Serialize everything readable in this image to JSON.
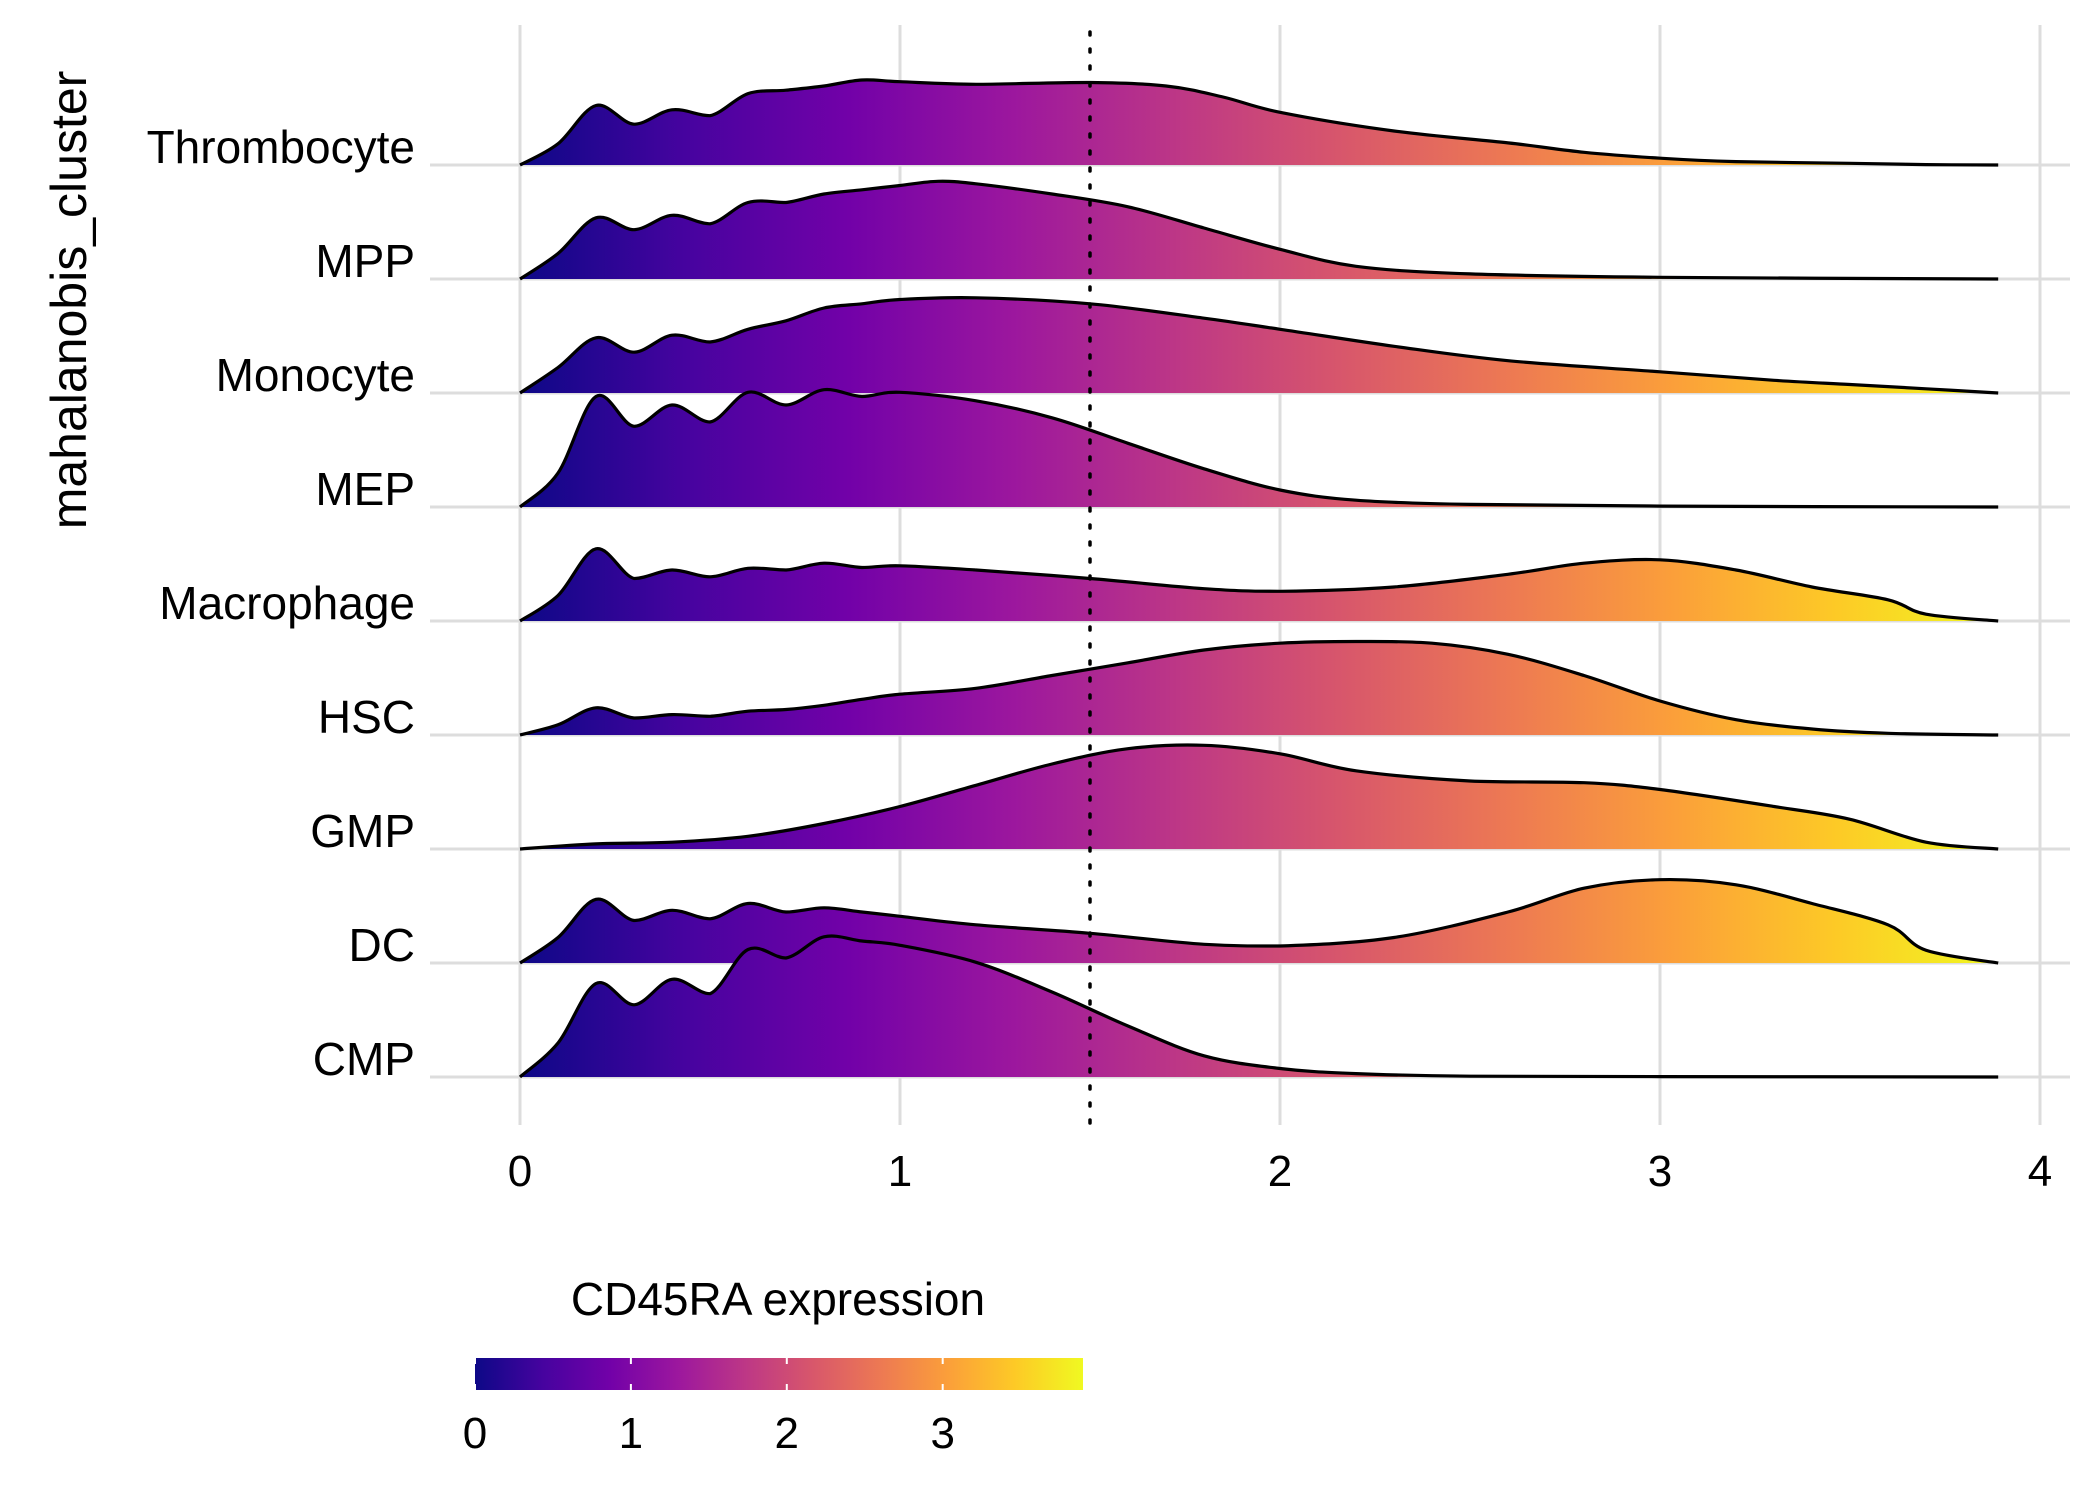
{
  "chart_data": {
    "type": "ridgeline",
    "title": "",
    "xlabel": "",
    "ylabel": "mahalanobis_cluster",
    "xlim": [
      0,
      4
    ],
    "x_ticks": [
      0,
      1,
      2,
      3,
      4
    ],
    "grid": true,
    "threshold_line": 1.5,
    "legend": {
      "title": "CD45RA expression",
      "position": "bottom-left",
      "colormap": "plasma",
      "range": [
        0,
        3.9
      ],
      "ticks": [
        0,
        1,
        2,
        3
      ]
    },
    "categories": [
      "Thrombocyte",
      "MPP",
      "Monocyte",
      "MEP",
      "Macrophage",
      "HSC",
      "GMP",
      "DC",
      "CMP"
    ],
    "colors": {
      "outline": "#000000",
      "grid": "#dddddd",
      "gradient": [
        "#0d0887",
        "#46039f",
        "#7201a8",
        "#9c179e",
        "#bd3786",
        "#d8576b",
        "#ed7953",
        "#fb9f3a",
        "#fdca26",
        "#f0f921"
      ]
    },
    "series": [
      {
        "name": "Thrombocyte",
        "x": [
          0,
          0.1,
          0.2,
          0.3,
          0.4,
          0.5,
          0.6,
          0.7,
          0.8,
          0.9,
          1.0,
          1.2,
          1.5,
          1.7,
          1.85,
          2.0,
          2.3,
          2.6,
          2.8,
          3.0,
          3.2,
          3.5,
          3.7,
          3.89
        ],
        "y": [
          0,
          0.25,
          0.7,
          0.48,
          0.65,
          0.58,
          0.84,
          0.88,
          0.93,
          1.0,
          0.98,
          0.95,
          0.97,
          0.93,
          0.8,
          0.62,
          0.4,
          0.26,
          0.15,
          0.08,
          0.04,
          0.02,
          0.005,
          0
        ]
      },
      {
        "name": "MPP",
        "x": [
          0,
          0.1,
          0.2,
          0.3,
          0.4,
          0.5,
          0.6,
          0.7,
          0.8,
          0.9,
          1.0,
          1.1,
          1.2,
          1.4,
          1.6,
          1.8,
          2.0,
          2.2,
          2.5,
          3.0,
          3.89
        ],
        "y": [
          0,
          0.3,
          0.72,
          0.58,
          0.75,
          0.65,
          0.9,
          0.9,
          1.0,
          1.05,
          1.1,
          1.15,
          1.12,
          1.0,
          0.85,
          0.6,
          0.35,
          0.15,
          0.06,
          0.02,
          0
        ]
      },
      {
        "name": "Monocyte",
        "x": [
          0,
          0.1,
          0.2,
          0.3,
          0.4,
          0.5,
          0.6,
          0.7,
          0.8,
          0.9,
          1.0,
          1.2,
          1.5,
          1.8,
          2.0,
          2.3,
          2.6,
          3.0,
          3.3,
          3.5,
          3.7,
          3.89
        ],
        "y": [
          0,
          0.3,
          0.65,
          0.48,
          0.68,
          0.6,
          0.75,
          0.85,
          1.0,
          1.05,
          1.1,
          1.12,
          1.05,
          0.88,
          0.75,
          0.55,
          0.38,
          0.25,
          0.15,
          0.1,
          0.05,
          0
        ]
      },
      {
        "name": "MEP",
        "x": [
          0,
          0.1,
          0.2,
          0.3,
          0.4,
          0.5,
          0.6,
          0.7,
          0.8,
          0.9,
          1.0,
          1.2,
          1.4,
          1.6,
          1.8,
          2.0,
          2.2,
          2.5,
          3.0,
          3.89
        ],
        "y": [
          0,
          0.4,
          1.3,
          0.95,
          1.2,
          1.0,
          1.35,
          1.2,
          1.38,
          1.3,
          1.35,
          1.25,
          1.05,
          0.75,
          0.45,
          0.2,
          0.08,
          0.03,
          0.01,
          0
        ]
      },
      {
        "name": "Macrophage",
        "x": [
          0,
          0.1,
          0.2,
          0.3,
          0.4,
          0.5,
          0.6,
          0.7,
          0.8,
          0.9,
          1.0,
          1.2,
          1.5,
          1.8,
          2.0,
          2.3,
          2.6,
          2.8,
          3.0,
          3.2,
          3.4,
          3.6,
          3.7,
          3.89
        ],
        "y": [
          0,
          0.3,
          0.85,
          0.5,
          0.6,
          0.52,
          0.62,
          0.6,
          0.68,
          0.63,
          0.65,
          0.6,
          0.5,
          0.38,
          0.35,
          0.4,
          0.55,
          0.68,
          0.72,
          0.6,
          0.4,
          0.25,
          0.08,
          0
        ]
      },
      {
        "name": "HSC",
        "x": [
          0,
          0.1,
          0.2,
          0.3,
          0.4,
          0.5,
          0.6,
          0.7,
          0.8,
          0.9,
          1.0,
          1.2,
          1.4,
          1.6,
          1.8,
          2.0,
          2.2,
          2.4,
          2.6,
          2.8,
          3.0,
          3.2,
          3.4,
          3.6,
          3.89
        ],
        "y": [
          0,
          0.12,
          0.32,
          0.2,
          0.24,
          0.22,
          0.28,
          0.3,
          0.35,
          0.42,
          0.48,
          0.55,
          0.7,
          0.85,
          1.0,
          1.08,
          1.1,
          1.08,
          0.95,
          0.7,
          0.4,
          0.18,
          0.07,
          0.02,
          0
        ]
      },
      {
        "name": "GMP",
        "x": [
          0,
          0.2,
          0.4,
          0.6,
          0.8,
          1.0,
          1.2,
          1.4,
          1.6,
          1.8,
          2.0,
          2.2,
          2.5,
          2.8,
          3.0,
          3.3,
          3.5,
          3.7,
          3.89
        ],
        "y": [
          0,
          0.06,
          0.08,
          0.15,
          0.3,
          0.5,
          0.75,
          1.0,
          1.18,
          1.22,
          1.12,
          0.92,
          0.8,
          0.78,
          0.7,
          0.5,
          0.35,
          0.08,
          0
        ]
      },
      {
        "name": "DC",
        "x": [
          0,
          0.1,
          0.2,
          0.3,
          0.4,
          0.5,
          0.6,
          0.7,
          0.8,
          0.9,
          1.0,
          1.2,
          1.5,
          1.8,
          2.0,
          2.3,
          2.6,
          2.8,
          3.0,
          3.2,
          3.4,
          3.6,
          3.7,
          3.89
        ],
        "y": [
          0,
          0.3,
          0.75,
          0.5,
          0.62,
          0.52,
          0.7,
          0.6,
          0.65,
          0.6,
          0.55,
          0.45,
          0.35,
          0.22,
          0.2,
          0.3,
          0.6,
          0.88,
          0.98,
          0.92,
          0.7,
          0.45,
          0.15,
          0
        ]
      },
      {
        "name": "CMP",
        "x": [
          0,
          0.1,
          0.2,
          0.3,
          0.4,
          0.5,
          0.6,
          0.7,
          0.8,
          0.9,
          1.0,
          1.2,
          1.4,
          1.6,
          1.8,
          2.0,
          2.2,
          2.5,
          3.0,
          3.89
        ],
        "y": [
          0,
          0.4,
          1.1,
          0.85,
          1.15,
          0.98,
          1.5,
          1.4,
          1.65,
          1.6,
          1.55,
          1.35,
          1.0,
          0.6,
          0.25,
          0.1,
          0.04,
          0.01,
          0.005,
          0
        ]
      }
    ]
  }
}
